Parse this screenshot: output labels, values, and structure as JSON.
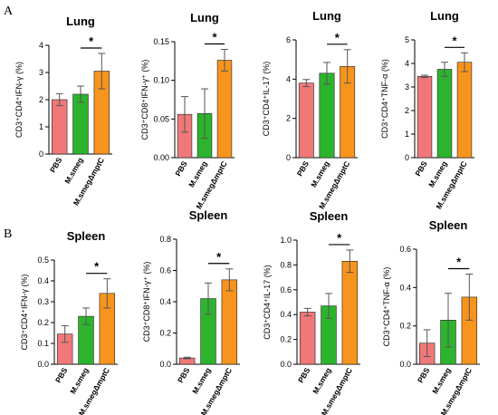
{
  "panels": [
    {
      "letter": "A"
    },
    {
      "letter": "B"
    }
  ],
  "colors": {
    "pbs": "#f07878",
    "msmeg": "#2db42d",
    "mutant": "#f7941d"
  },
  "chart_data": [
    {
      "type": "bar",
      "panel": "A",
      "title": "Lung",
      "ylabel": "CD3⁺CD4⁺IFN-γ (%)",
      "categories": [
        "PBS",
        "M.smeg",
        "M.smegΔmptC"
      ],
      "values": [
        2.0,
        2.2,
        3.05
      ],
      "errors": [
        0.22,
        0.3,
        0.65
      ],
      "ylim": [
        0,
        4
      ],
      "yticks": [
        "0",
        "1",
        "2",
        "3",
        "4"
      ],
      "sig": {
        "from": 1,
        "to": 2,
        "label": "*"
      }
    },
    {
      "type": "bar",
      "panel": "A",
      "title": "Lung",
      "ylabel": "CD3⁺CD8⁺IFN-γ⁺ (%)",
      "categories": [
        "PBS",
        "M.smeg",
        "M.smegΔmptC"
      ],
      "values": [
        0.056,
        0.057,
        0.126
      ],
      "errors": [
        0.023,
        0.032,
        0.014
      ],
      "ylim": [
        0,
        0.15
      ],
      "yticks": [
        "0.00",
        "0.05",
        "0.10",
        "0.15"
      ],
      "sig": {
        "from": 1,
        "to": 2,
        "label": "*"
      }
    },
    {
      "type": "bar",
      "panel": "A",
      "title": "Lung",
      "ylabel": "CD3⁺CD4⁺IL-17 (%)",
      "categories": [
        "PBS",
        "M.smeg",
        "M.smegΔmptC"
      ],
      "values": [
        3.8,
        4.3,
        4.65
      ],
      "errors": [
        0.18,
        0.55,
        0.85
      ],
      "ylim": [
        0,
        6
      ],
      "yticks": [
        "0",
        "2",
        "4",
        "6"
      ],
      "sig": {
        "from": 1,
        "to": 2,
        "label": "*"
      }
    },
    {
      "type": "bar",
      "panel": "A",
      "title": "Lung",
      "ylabel": "CD3⁺CD4⁺TNF-α (%)",
      "categories": [
        "PBS",
        "M.smeg",
        "M.smegΔmptC"
      ],
      "values": [
        3.45,
        3.75,
        4.05
      ],
      "errors": [
        0.05,
        0.3,
        0.4
      ],
      "ylim": [
        0,
        5
      ],
      "yticks": [
        "0",
        "1",
        "2",
        "3",
        "4",
        "5"
      ],
      "sig": {
        "from": 1,
        "to": 2,
        "label": "*"
      }
    },
    {
      "type": "bar",
      "panel": "B",
      "title": "Spleen",
      "ylabel": "CD3⁺CD4⁺IFN-γ (%)",
      "categories": [
        "PBS",
        "M.smeg",
        "M.smegΔmptC"
      ],
      "values": [
        0.145,
        0.23,
        0.34
      ],
      "errors": [
        0.04,
        0.04,
        0.07
      ],
      "ylim": [
        0,
        0.5
      ],
      "yticks": [
        "0.0",
        "0.1",
        "0.2",
        "0.3",
        "0.4",
        "0.5"
      ],
      "sig": {
        "from": 1,
        "to": 2,
        "label": "*"
      }
    },
    {
      "type": "bar",
      "panel": "B",
      "title": "Spleen",
      "ylabel": "CD3⁺CD8⁺IFN-γ⁺ (%)",
      "categories": [
        "PBS",
        "M.smeg",
        "M.smegΔmptC"
      ],
      "values": [
        0.04,
        0.42,
        0.54
      ],
      "errors": [
        0.005,
        0.1,
        0.07
      ],
      "ylim": [
        0,
        0.8
      ],
      "yticks": [
        "0.0",
        "0.2",
        "0.4",
        "0.6",
        "0.8"
      ],
      "sig": {
        "from": 1,
        "to": 2,
        "label": "*"
      }
    },
    {
      "type": "bar",
      "panel": "B",
      "title": "Spleen",
      "ylabel": "CD3⁺CD4⁺IL-17 (%)",
      "categories": [
        "PBS",
        "M.smeg",
        "M.smegΔmptC"
      ],
      "values": [
        0.42,
        0.47,
        0.83
      ],
      "errors": [
        0.03,
        0.1,
        0.09
      ],
      "ylim": [
        0,
        1.0
      ],
      "yticks": [
        "0.0",
        "0.2",
        "0.4",
        "0.6",
        "0.8",
        "1.0"
      ],
      "sig": {
        "from": 1,
        "to": 2,
        "label": "*"
      }
    },
    {
      "type": "bar",
      "panel": "B",
      "title": "Spleen",
      "ylabel": "CD3⁺CD4⁺TNF-α (%)",
      "categories": [
        "PBS",
        "M.smeg",
        "M.smegΔmptC"
      ],
      "values": [
        0.11,
        0.23,
        0.35
      ],
      "errors": [
        0.07,
        0.14,
        0.12
      ],
      "ylim": [
        0,
        0.6
      ],
      "yticks": [
        "0.0",
        "0.2",
        "0.4",
        "0.6"
      ],
      "sig": {
        "from": 1,
        "to": 2,
        "label": "*"
      }
    }
  ]
}
